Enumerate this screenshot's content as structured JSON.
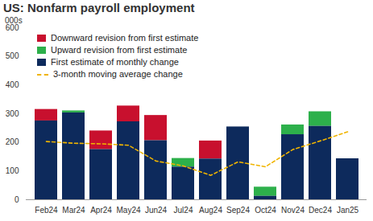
{
  "chart_data": {
    "type": "bar",
    "title": "US: Nonfarm payroll employment",
    "ylabel": "000s",
    "categories": [
      "Feb24",
      "Mar24",
      "Apr24",
      "May24",
      "Jun24",
      "Jul24",
      "Aug24",
      "Sep24",
      "Oct24",
      "Nov24",
      "Dec24",
      "Jan25"
    ],
    "series": [
      {
        "name": "Downward revision from first estimate",
        "type": "bar",
        "color": "#c8102e",
        "values": [
          40,
          0,
          65,
          55,
          88,
          0,
          63,
          0,
          0,
          0,
          0,
          0
        ]
      },
      {
        "name": "Upward revision from first estimate",
        "type": "bar",
        "color": "#2db04b",
        "values": [
          0,
          7,
          0,
          0,
          0,
          30,
          0,
          0,
          32,
          34,
          51,
          0
        ]
      },
      {
        "name": "First estimate of monthly change",
        "type": "bar",
        "color": "#0d2a5c",
        "values": [
          275,
          303,
          175,
          272,
          206,
          114,
          142,
          254,
          12,
          227,
          256,
          143
        ]
      },
      {
        "name": "3-month moving average change",
        "type": "line",
        "color": "#f0b400",
        "line_style": "dashed",
        "values": [
          203,
          197,
          195,
          190,
          135,
          118,
          85,
          132,
          115,
          175,
          205,
          237
        ]
      }
    ],
    "stacked": true,
    "ylim": [
      0,
      600
    ],
    "yticks": [
      0,
      100,
      200,
      300,
      400,
      500,
      600
    ],
    "grid": false,
    "legend": "top-left"
  }
}
